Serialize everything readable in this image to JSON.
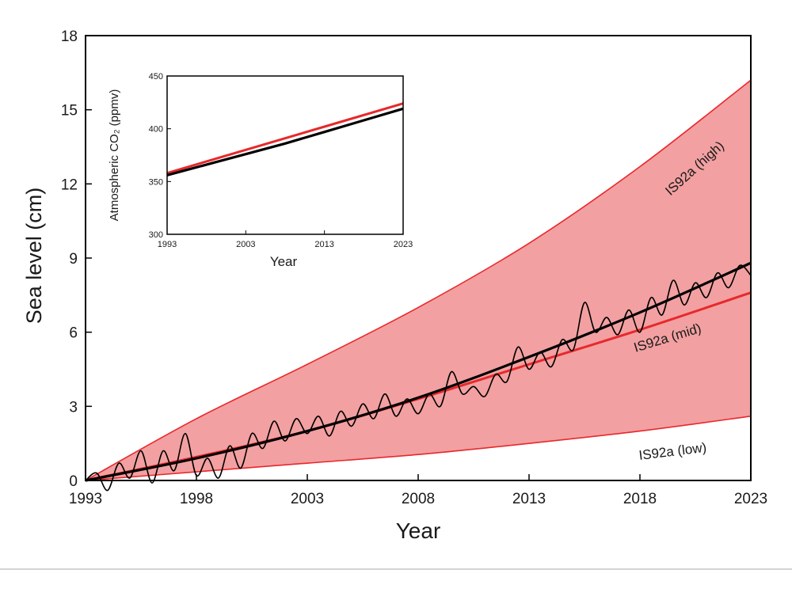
{
  "chart_data": [
    {
      "type": "area",
      "xlabel": "Year",
      "ylabel": "Sea level (cm)",
      "xlim": [
        1993,
        2023
      ],
      "ylim": [
        0,
        18
      ],
      "x_ticks": [
        1993,
        1998,
        2003,
        2008,
        2013,
        2018,
        2023
      ],
      "y_ticks": [
        0,
        3,
        6,
        9,
        12,
        15,
        18
      ],
      "grid": false,
      "colors": {
        "band": "#f2a0a1",
        "projection": "#e8282c",
        "observed": "#000000"
      },
      "band": {
        "x": [
          1993,
          1998,
          2003,
          2008,
          2013,
          2018,
          2023
        ],
        "low": [
          0,
          0.35,
          0.7,
          1.05,
          1.5,
          2.0,
          2.6
        ],
        "high": [
          0,
          2.5,
          4.7,
          7.0,
          9.6,
          12.7,
          16.2
        ]
      },
      "series": [
        {
          "name": "IS92a (high)",
          "x": [
            1993,
            1998,
            2003,
            2008,
            2013,
            2018,
            2023
          ],
          "values": [
            0,
            2.5,
            4.7,
            7.0,
            9.6,
            12.7,
            16.2
          ]
        },
        {
          "name": "IS92a (mid)",
          "x": [
            1993,
            1998,
            2003,
            2008,
            2013,
            2018,
            2023
          ],
          "values": [
            0,
            0.95,
            2.0,
            3.3,
            4.7,
            6.1,
            7.6
          ]
        },
        {
          "name": "IS92a (low)",
          "x": [
            1993,
            1998,
            2003,
            2008,
            2013,
            2018,
            2023
          ],
          "values": [
            0,
            0.35,
            0.7,
            1.05,
            1.5,
            2.0,
            2.6
          ]
        }
      ],
      "observed_trend": {
        "x": [
          1993,
          1998,
          2003,
          2008,
          2013,
          2018,
          2023
        ],
        "values": [
          0,
          0.9,
          2.0,
          3.35,
          5.0,
          6.8,
          8.8
        ]
      },
      "observed": {
        "x": [
          1993.0,
          1993.5,
          1994.0,
          1994.5,
          1995.0,
          1995.5,
          1996.0,
          1996.5,
          1997.0,
          1997.5,
          1998.0,
          1998.5,
          1999.0,
          1999.5,
          2000.0,
          2000.5,
          2001.0,
          2001.5,
          2002.0,
          2002.5,
          2003.0,
          2003.5,
          2004.0,
          2004.5,
          2005.0,
          2005.5,
          2006.0,
          2006.5,
          2007.0,
          2007.5,
          2008.0,
          2008.5,
          2009.0,
          2009.5,
          2010.0,
          2010.5,
          2011.0,
          2011.5,
          2012.0,
          2012.5,
          2013.0,
          2013.5,
          2014.0,
          2014.5,
          2015.0,
          2015.5,
          2016.0,
          2016.5,
          2017.0,
          2017.5,
          2018.0,
          2018.5,
          2019.0,
          2019.5,
          2020.0,
          2020.5,
          2021.0,
          2021.5,
          2022.0,
          2022.5,
          2023.0
        ],
        "values": [
          0.0,
          0.3,
          -0.4,
          0.7,
          0.1,
          1.2,
          -0.1,
          1.2,
          0.4,
          1.9,
          0.2,
          0.9,
          0.1,
          1.4,
          0.5,
          1.9,
          1.3,
          2.4,
          1.6,
          2.5,
          1.9,
          2.6,
          1.8,
          2.8,
          2.2,
          3.1,
          2.5,
          3.5,
          2.6,
          3.3,
          2.7,
          3.5,
          3.0,
          4.4,
          3.5,
          3.8,
          3.4,
          4.3,
          4.0,
          5.4,
          4.5,
          5.2,
          4.6,
          5.7,
          5.3,
          7.2,
          6.0,
          6.6,
          5.9,
          6.9,
          6.0,
          7.4,
          6.7,
          8.1,
          7.1,
          8.0,
          7.4,
          8.4,
          7.8,
          8.7,
          8.3
        ]
      },
      "annotations": [
        "IS92a (high)",
        "IS92a (mid)",
        "IS92a (low)"
      ]
    },
    {
      "type": "line",
      "xlabel": "Year",
      "ylabel": "Atmospheric CO₂ (ppmv)",
      "xlim": [
        1993,
        2023
      ],
      "ylim": [
        300,
        450
      ],
      "x_ticks": [
        1993,
        2003,
        2013,
        2023
      ],
      "y_ticks": [
        300,
        350,
        400,
        450
      ],
      "grid": false,
      "series": [
        {
          "color": "#e8282c",
          "x": [
            1993,
            2003,
            2013,
            2023
          ],
          "values": [
            358,
            380,
            402,
            424
          ]
        },
        {
          "color": "#000000",
          "x": [
            1993,
            1996,
            1999,
            2003,
            2008,
            2013,
            2018,
            2023
          ],
          "values": [
            356,
            362,
            368,
            376,
            386,
            397,
            408,
            419
          ]
        }
      ]
    }
  ]
}
